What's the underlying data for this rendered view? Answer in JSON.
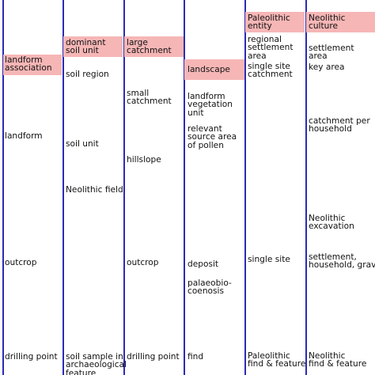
{
  "colors": {
    "axis": "#2b2bb8",
    "highlight": "#f6b6b6",
    "text": "#111111"
  },
  "columns": [
    {
      "top": "",
      "rows": [
        "landform\nassociation",
        "landform",
        "outcrop",
        "drilling point"
      ]
    },
    {
      "top": "dominant\nsoil unit",
      "rows": [
        "soil region",
        "soil unit",
        "Neolithic field",
        "soil sample in\narchaeological\nfeature"
      ]
    },
    {
      "top": "large\ncatchment",
      "rows": [
        "small\ncatchment",
        "hillslope",
        "outcrop",
        "drilling point"
      ]
    },
    {
      "top": "",
      "rows": [
        "landscape",
        "landform\nvegetation\nunit",
        "relevant\nsource area\nof pollen",
        "deposit",
        "palaeobio-\ncoenosis",
        "find"
      ]
    },
    {
      "top": "Paleolithic\nentity",
      "rows": [
        "regional\nsettlement\narea",
        "single site\ncatchment",
        "single site",
        "Paleolithic\nfind & feature"
      ]
    },
    {
      "top": "Neolithic\nculture",
      "rows": [
        "settlement\narea",
        "key area",
        "catchment per\nhousehold",
        "Neolithic\nexcavation",
        "settlement,\nhousehold, grave",
        "Neolithic\nfind & feature"
      ]
    }
  ]
}
